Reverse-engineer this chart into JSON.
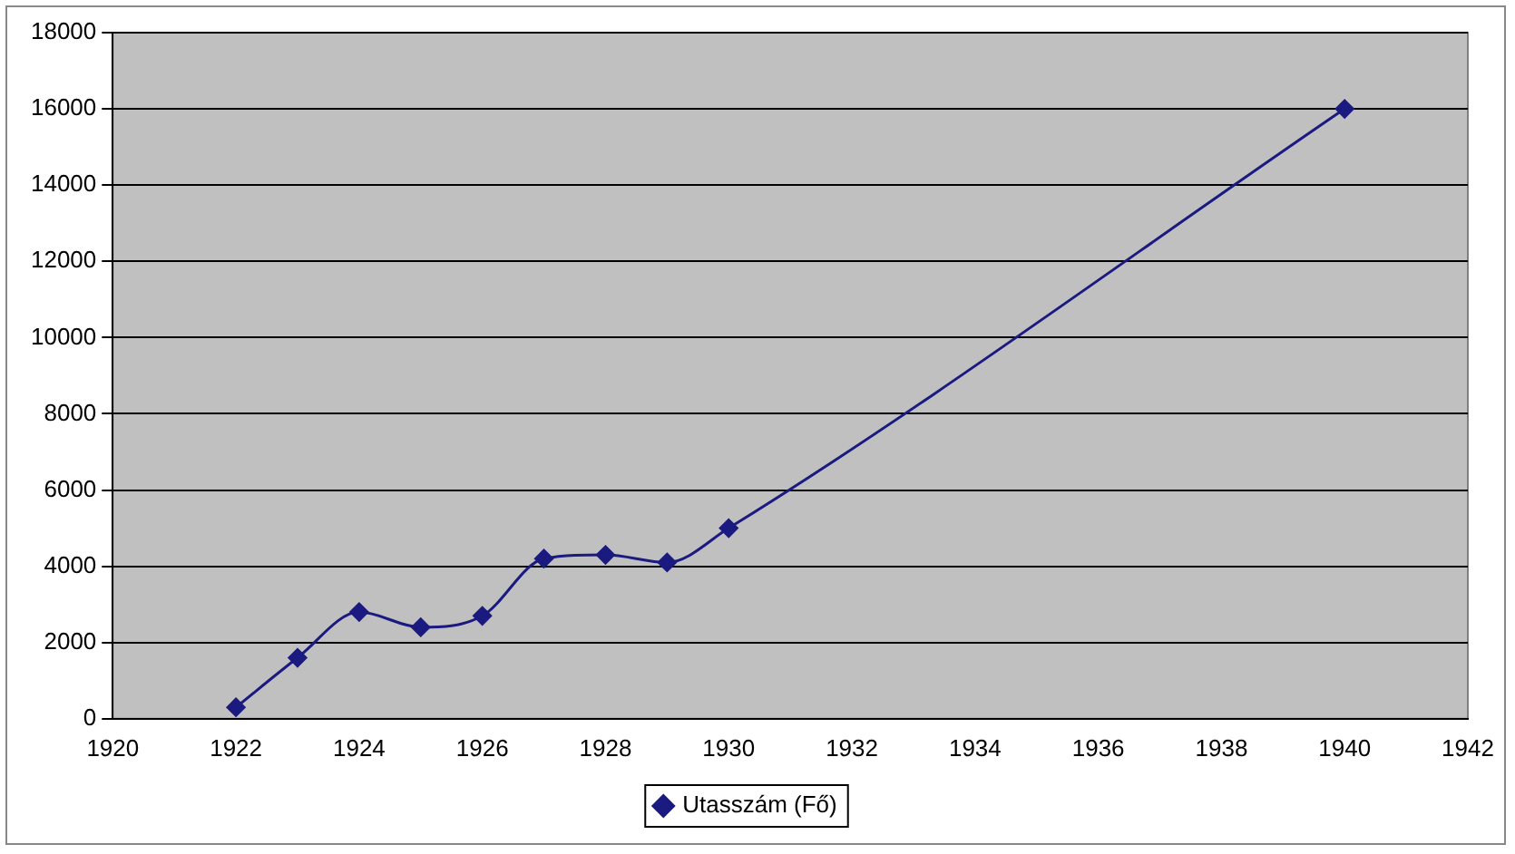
{
  "chart_data": {
    "type": "line",
    "x": [
      1922,
      1923,
      1924,
      1925,
      1926,
      1927,
      1928,
      1929,
      1930,
      1940
    ],
    "series": [
      {
        "name": "Utasszám (Fő)",
        "color": "#1a1a80",
        "values": [
          300,
          1600,
          2800,
          2400,
          2700,
          4200,
          4300,
          4100,
          5000,
          16000
        ]
      }
    ],
    "xlim": [
      1920,
      1942
    ],
    "xticks": [
      1920,
      1922,
      1924,
      1926,
      1928,
      1930,
      1932,
      1934,
      1936,
      1938,
      1940,
      1942
    ],
    "ylim": [
      0,
      18000
    ],
    "yticks": [
      0,
      2000,
      4000,
      6000,
      8000,
      10000,
      12000,
      14000,
      16000,
      18000
    ],
    "grid": "y",
    "legend": "bottom",
    "marker": "diamond",
    "line_style": "solid"
  }
}
